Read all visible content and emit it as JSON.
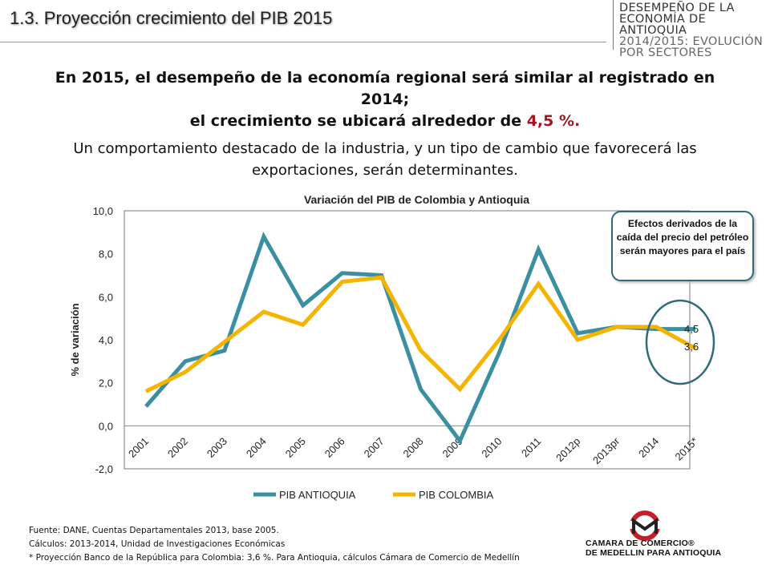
{
  "slide": {
    "title": "1.3. Proyección crecimiento del PIB 2015",
    "header_lines": [
      "DESEMPEÑO DE LA",
      "ECONOMÍA DE ANTIOQUIA",
      "2014/2015: EVOLUCIÓN",
      "POR SECTORES"
    ],
    "lead_part1": "En 2015, el desempeño de la economía regional será similar al registrado en 2014;",
    "lead_part2": "el crecimiento se ubicará alrededor de ",
    "lead_highlight": "4,5 %.",
    "sub_text": "Un comportamiento destacado de la industria, y un tipo de cambio que favorecerá las exportaciones, serán determinantes.",
    "callout": "Efectos derivados de la caída del precio del petróleo serán mayores para el país",
    "notes": [
      "Fuente: DANE, Cuentas Departamentales 2013, base 2005.",
      "Cálculos: 2013-2014,  Unidad de Investigaciones Económicas",
      "* Proyección Banco de la República para Colombia: 3,6 %. Para Antioquia, cálculos Cámara de Comercio de Medellín"
    ],
    "logo_lines": [
      "CAMARA DE COMERCIO®",
      "DE MEDELLIN PARA ANTIOQUIA"
    ]
  },
  "chart_data": {
    "type": "line",
    "title": "Variación del PIB de Colombia y Antioquia",
    "xlabel": "",
    "ylabel": "% de variación",
    "categories": [
      "2001",
      "2002",
      "2003",
      "2004",
      "2005",
      "2006",
      "2007",
      "2008",
      "2009",
      "2010",
      "2011",
      "2012p",
      "2013pr",
      "2014",
      "2015*"
    ],
    "series": [
      {
        "name": "PIB ANTIOQUIA",
        "color": "#3a8fa0",
        "values": [
          0.9,
          3.0,
          3.5,
          8.8,
          5.6,
          7.1,
          7.0,
          1.7,
          -0.7,
          3.4,
          8.2,
          4.3,
          4.6,
          4.5,
          4.5
        ]
      },
      {
        "name": "PIB COLOMBIA",
        "color": "#f5b400",
        "values": [
          1.6,
          2.5,
          3.9,
          5.3,
          4.7,
          6.7,
          6.9,
          3.5,
          1.7,
          4.0,
          6.6,
          4.0,
          4.6,
          4.6,
          3.6
        ]
      }
    ],
    "ylim": [
      -2,
      10
    ],
    "yticks": [
      "10,0",
      "8,0",
      "6,0",
      "4,0",
      "2,0",
      "0,0",
      "-2,0"
    ],
    "yticks_values": [
      10,
      8,
      6,
      4,
      2,
      0,
      -2
    ],
    "end_labels": [
      "4,5",
      "3,6"
    ],
    "grid": false,
    "legend_position": "bottom"
  }
}
